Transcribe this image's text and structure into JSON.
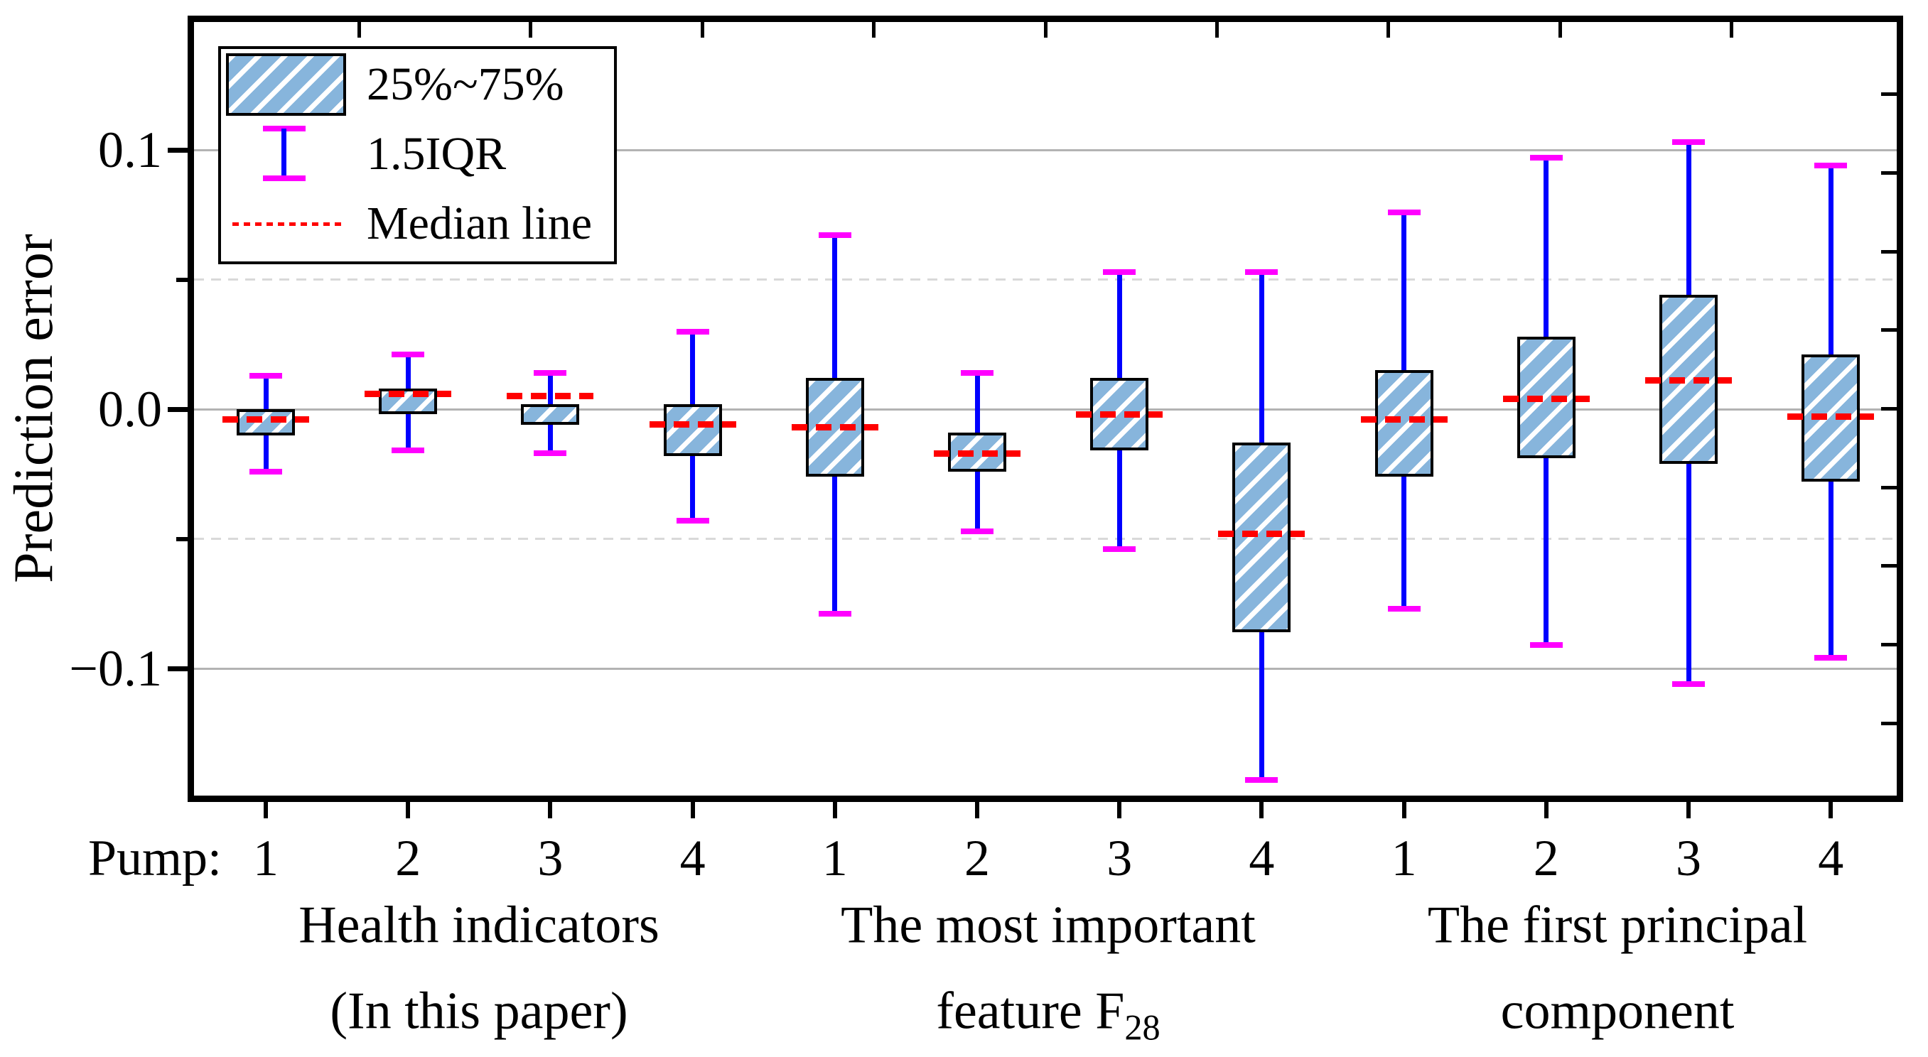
{
  "figure": {
    "background": "#FFFFFF"
  },
  "y_axis": {
    "label": "Prediction error",
    "tick_labels": [
      "0.1",
      "0.0",
      "−0.1"
    ],
    "major_gridlines": [
      0.1,
      0.0,
      -0.1
    ],
    "minor_gridlines": [
      0.05,
      -0.05
    ],
    "range": [
      -0.15,
      0.15
    ]
  },
  "x_axis": {
    "prefix": "Pump:",
    "pump_labels": [
      "1",
      "2",
      "3",
      "4",
      "1",
      "2",
      "3",
      "4",
      "1",
      "2",
      "3",
      "4"
    ],
    "groups": [
      {
        "line1": "Health indicators",
        "line2_main": "(In this paper)",
        "line2_sub": ""
      },
      {
        "line1": "The most important",
        "line2_main": "feature F",
        "line2_sub": "28"
      },
      {
        "line1": "The first principal",
        "line2_main": "component",
        "line2_sub": ""
      }
    ]
  },
  "legend": {
    "items": [
      {
        "label": "25%~75%",
        "glyph": "hatched-box"
      },
      {
        "label": "1.5IQR",
        "glyph": "whisker"
      },
      {
        "label": "Median line",
        "glyph": "red-dotted-line"
      }
    ]
  },
  "colors": {
    "box_fill": "#87B5DC",
    "box_hatch": "#FFFFFF",
    "box_border": "#000000",
    "whisker": "#0000FF",
    "whisker_cap": "#FF00FF",
    "median": "#FF0000",
    "grid_major": "#B3B3B3",
    "grid_minor": "#D9D9D9",
    "axis": "#000000"
  },
  "chart_data": {
    "type": "box",
    "ylabel": "Prediction error",
    "ylim": [
      -0.15,
      0.15
    ],
    "y_major_ticks": [
      0.1,
      0.0,
      -0.1
    ],
    "y_minor_ticks": [
      0.05,
      -0.05
    ],
    "legend_position": "top-left-inside",
    "grid": "major-solid-minor-dashed",
    "categories": [
      "1",
      "2",
      "3",
      "4",
      "1",
      "2",
      "3",
      "4",
      "1",
      "2",
      "3",
      "4"
    ],
    "group_names": [
      "Health indicators (In this paper)",
      "The most important feature F28",
      "The first principal component"
    ],
    "series": [
      {
        "group": "Health indicators (In this paper)",
        "pump": "1",
        "whisker_high": 0.013,
        "q3": 0.0,
        "median": -0.004,
        "q1": -0.01,
        "whisker_low": -0.024
      },
      {
        "group": "Health indicators (In this paper)",
        "pump": "2",
        "whisker_high": 0.021,
        "q3": 0.008,
        "median": 0.006,
        "q1": -0.002,
        "whisker_low": -0.016
      },
      {
        "group": "Health indicators (In this paper)",
        "pump": "3",
        "whisker_high": 0.014,
        "q3": 0.002,
        "median": 0.005,
        "q1": -0.006,
        "whisker_low": -0.017
      },
      {
        "group": "Health indicators (In this paper)",
        "pump": "4",
        "whisker_high": 0.03,
        "q3": 0.002,
        "median": -0.006,
        "q1": -0.018,
        "whisker_low": -0.043
      },
      {
        "group": "The most important feature F28",
        "pump": "1",
        "whisker_high": 0.067,
        "q3": 0.012,
        "median": -0.007,
        "q1": -0.026,
        "whisker_low": -0.079
      },
      {
        "group": "The most important feature F28",
        "pump": "2",
        "whisker_high": 0.014,
        "q3": -0.009,
        "median": -0.017,
        "q1": -0.024,
        "whisker_low": -0.047
      },
      {
        "group": "The most important feature F28",
        "pump": "3",
        "whisker_high": 0.053,
        "q3": 0.012,
        "median": -0.002,
        "q1": -0.016,
        "whisker_low": -0.054
      },
      {
        "group": "The most important feature F28",
        "pump": "4",
        "whisker_high": 0.053,
        "q3": -0.013,
        "median": -0.048,
        "q1": -0.086,
        "whisker_low": -0.143
      },
      {
        "group": "The first principal component",
        "pump": "1",
        "whisker_high": 0.076,
        "q3": 0.015,
        "median": -0.004,
        "q1": -0.026,
        "whisker_low": -0.077
      },
      {
        "group": "The first principal component",
        "pump": "2",
        "whisker_high": 0.097,
        "q3": 0.028,
        "median": 0.004,
        "q1": -0.019,
        "whisker_low": -0.091
      },
      {
        "group": "The first principal component",
        "pump": "3",
        "whisker_high": 0.103,
        "q3": 0.044,
        "median": 0.011,
        "q1": -0.021,
        "whisker_low": -0.106
      },
      {
        "group": "The first principal component",
        "pump": "4",
        "whisker_high": 0.094,
        "q3": 0.021,
        "median": -0.003,
        "q1": -0.028,
        "whisker_low": -0.096
      }
    ]
  }
}
